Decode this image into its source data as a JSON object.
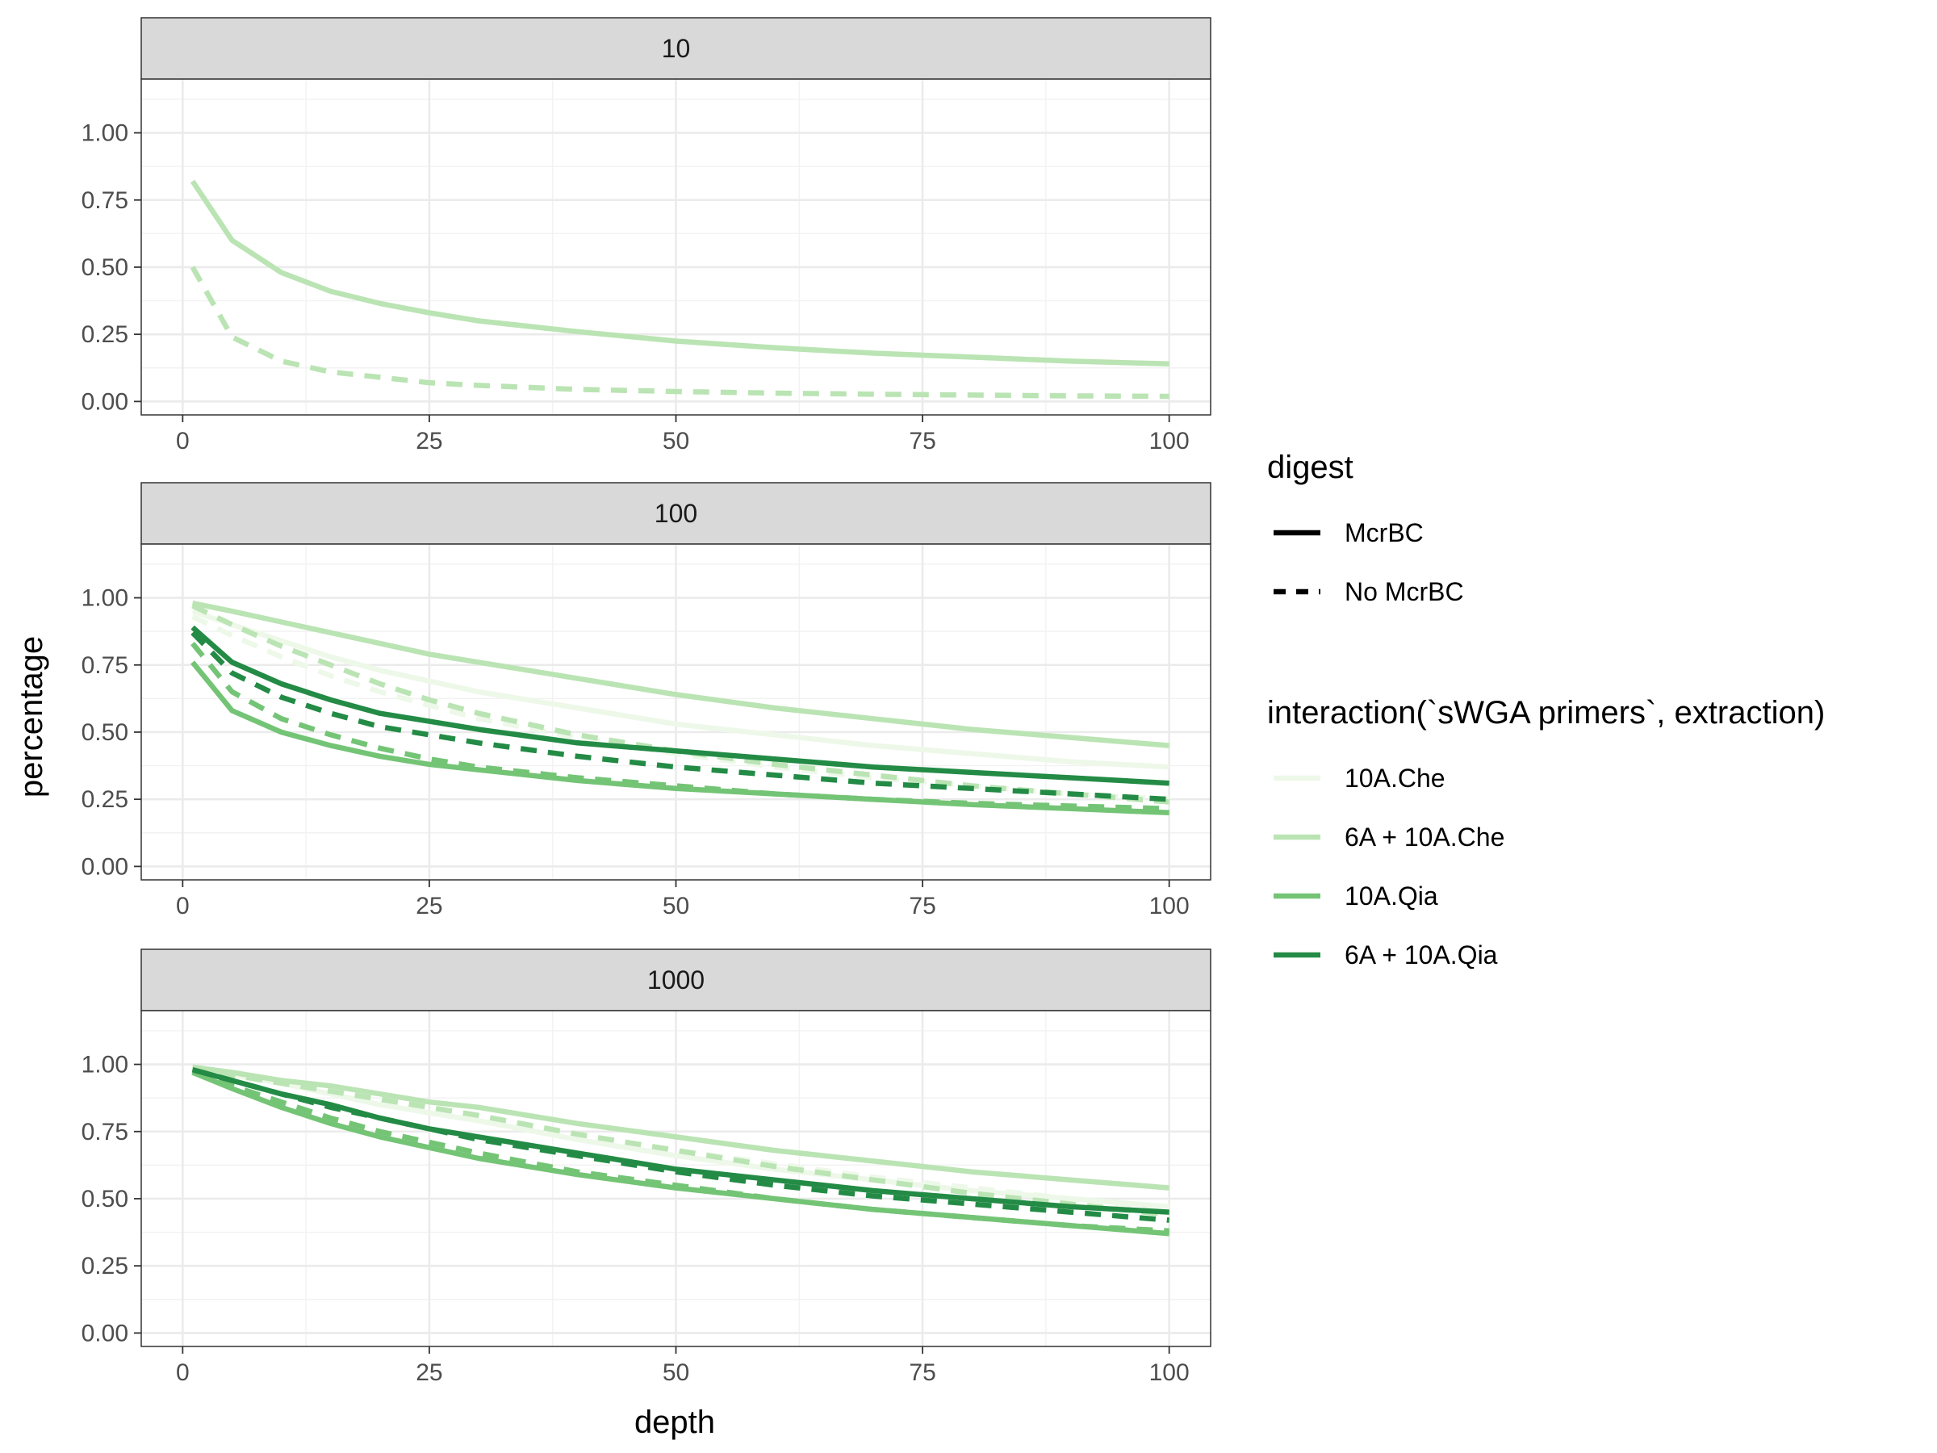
{
  "chart_data": {
    "type": "line",
    "xlabel": "depth",
    "ylabel": "percentage",
    "xlim": [
      0,
      100
    ],
    "ylim": [
      0,
      1
    ],
    "x_ticks": [
      0,
      25,
      50,
      75,
      100
    ],
    "y_ticks": [
      0.0,
      0.25,
      0.5,
      0.75,
      1.0
    ],
    "x_tick_labels": [
      "0",
      "25",
      "50",
      "75",
      "100"
    ],
    "y_tick_labels": [
      "0.00",
      "0.25",
      "0.50",
      "0.75",
      "1.00"
    ],
    "grid": true,
    "legend_placement": "right",
    "x": [
      1,
      5,
      10,
      15,
      20,
      25,
      30,
      40,
      50,
      60,
      70,
      80,
      90,
      100
    ],
    "legend": {
      "digest": {
        "title": "digest",
        "items": [
          {
            "label": "McrBC",
            "dash": "solid"
          },
          {
            "label": "No McrBC",
            "dash": "dashed"
          }
        ]
      },
      "interaction": {
        "title": "interaction(`sWGA primers`, extraction)",
        "items": [
          {
            "label": "10A.Che",
            "color": "#edf8e9"
          },
          {
            "label": "6A + 10A.Che",
            "color": "#bae4b3"
          },
          {
            "label": "10A.Qia",
            "color": "#74c476"
          },
          {
            "label": "6A + 10A.Qia",
            "color": "#238b45"
          }
        ]
      }
    },
    "panels": [
      {
        "label": "10",
        "series": [
          {
            "group": "6A + 10A.Che",
            "digest": "McrBC",
            "color": "#bae4b3",
            "values": [
              0.82,
              0.6,
              0.48,
              0.41,
              0.365,
              0.33,
              0.3,
              0.26,
              0.225,
              0.2,
              0.18,
              0.165,
              0.15,
              0.14
            ]
          },
          {
            "group": "6A + 10A.Che",
            "digest": "No McrBC",
            "color": "#bae4b3",
            "values": [
              0.5,
              0.24,
              0.15,
              0.11,
              0.09,
              0.07,
              0.06,
              0.045,
              0.037,
              0.031,
              0.027,
              0.024,
              0.021,
              0.019
            ]
          }
        ]
      },
      {
        "label": "100",
        "series": [
          {
            "group": "10A.Che",
            "digest": "McrBC",
            "color": "#edf8e9",
            "values": [
              0.95,
              0.9,
              0.84,
              0.78,
              0.73,
              0.69,
              0.65,
              0.59,
              0.53,
              0.49,
              0.45,
              0.42,
              0.39,
              0.37
            ]
          },
          {
            "group": "10A.Che",
            "digest": "No McrBC",
            "color": "#edf8e9",
            "values": [
              0.93,
              0.86,
              0.78,
              0.71,
              0.65,
              0.6,
              0.55,
              0.48,
              0.42,
              0.37,
              0.33,
              0.3,
              0.27,
              0.25
            ]
          },
          {
            "group": "6A + 10A.Che",
            "digest": "McrBC",
            "color": "#bae4b3",
            "values": [
              0.98,
              0.95,
              0.91,
              0.87,
              0.83,
              0.79,
              0.76,
              0.7,
              0.64,
              0.59,
              0.55,
              0.51,
              0.48,
              0.45
            ]
          },
          {
            "group": "6A + 10A.Che",
            "digest": "No McrBC",
            "color": "#bae4b3",
            "values": [
              0.97,
              0.9,
              0.82,
              0.75,
              0.68,
              0.62,
              0.57,
              0.49,
              0.43,
              0.38,
              0.34,
              0.3,
              0.27,
              0.24
            ]
          },
          {
            "group": "10A.Qia",
            "digest": "McrBC",
            "color": "#74c476",
            "values": [
              0.76,
              0.58,
              0.5,
              0.45,
              0.41,
              0.38,
              0.36,
              0.32,
              0.29,
              0.27,
              0.25,
              0.23,
              0.215,
              0.2
            ]
          },
          {
            "group": "10A.Qia",
            "digest": "No McrBC",
            "color": "#74c476",
            "values": [
              0.83,
              0.65,
              0.55,
              0.49,
              0.44,
              0.4,
              0.37,
              0.33,
              0.3,
              0.27,
              0.25,
              0.235,
              0.225,
              0.215
            ]
          },
          {
            "group": "6A + 10A.Qia",
            "digest": "McrBC",
            "color": "#238b45",
            "values": [
              0.89,
              0.76,
              0.68,
              0.62,
              0.57,
              0.54,
              0.51,
              0.46,
              0.43,
              0.4,
              0.37,
              0.35,
              0.33,
              0.31
            ]
          },
          {
            "group": "6A + 10A.Qia",
            "digest": "No McrBC",
            "color": "#238b45",
            "values": [
              0.87,
              0.72,
              0.63,
              0.57,
              0.52,
              0.49,
              0.46,
              0.41,
              0.37,
              0.34,
              0.31,
              0.29,
              0.27,
              0.25
            ]
          }
        ]
      },
      {
        "label": "1000",
        "series": [
          {
            "group": "10A.Che",
            "digest": "McrBC",
            "color": "#edf8e9",
            "values": [
              0.99,
              0.96,
              0.93,
              0.89,
              0.85,
              0.82,
              0.79,
              0.72,
              0.66,
              0.61,
              0.57,
              0.53,
              0.5,
              0.47
            ]
          },
          {
            "group": "10A.Che",
            "digest": "No McrBC",
            "color": "#edf8e9",
            "values": [
              0.99,
              0.96,
              0.93,
              0.9,
              0.87,
              0.83,
              0.8,
              0.74,
              0.68,
              0.63,
              0.58,
              0.54,
              0.5,
              0.46
            ]
          },
          {
            "group": "6A + 10A.Che",
            "digest": "McrBC",
            "color": "#bae4b3",
            "values": [
              0.99,
              0.97,
              0.94,
              0.92,
              0.89,
              0.86,
              0.84,
              0.78,
              0.73,
              0.68,
              0.64,
              0.6,
              0.57,
              0.54
            ]
          },
          {
            "group": "6A + 10A.Che",
            "digest": "No McrBC",
            "color": "#bae4b3",
            "values": [
              0.99,
              0.96,
              0.93,
              0.9,
              0.87,
              0.84,
              0.81,
              0.74,
              0.68,
              0.62,
              0.57,
              0.52,
              0.48,
              0.44
            ]
          },
          {
            "group": "10A.Qia",
            "digest": "McrBC",
            "color": "#74c476",
            "values": [
              0.97,
              0.91,
              0.84,
              0.78,
              0.73,
              0.69,
              0.65,
              0.59,
              0.54,
              0.5,
              0.46,
              0.43,
              0.4,
              0.37
            ]
          },
          {
            "group": "10A.Qia",
            "digest": "No McrBC",
            "color": "#74c476",
            "values": [
              0.97,
              0.92,
              0.86,
              0.8,
              0.75,
              0.71,
              0.67,
              0.6,
              0.55,
              0.5,
              0.46,
              0.43,
              0.4,
              0.38
            ]
          },
          {
            "group": "6A + 10A.Qia",
            "digest": "McrBC",
            "color": "#238b45",
            "values": [
              0.98,
              0.94,
              0.89,
              0.85,
              0.8,
              0.76,
              0.73,
              0.67,
              0.61,
              0.57,
              0.53,
              0.5,
              0.47,
              0.45
            ]
          },
          {
            "group": "6A + 10A.Qia",
            "digest": "No McrBC",
            "color": "#238b45",
            "values": [
              0.98,
              0.94,
              0.89,
              0.84,
              0.8,
              0.76,
              0.72,
              0.66,
              0.6,
              0.55,
              0.51,
              0.48,
              0.45,
              0.42
            ]
          }
        ]
      }
    ]
  }
}
